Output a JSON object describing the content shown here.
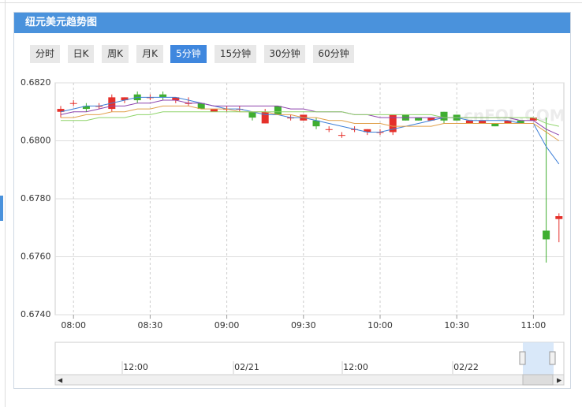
{
  "header": {
    "title": "纽元美元趋势图"
  },
  "tabs": {
    "labels": [
      "分时",
      "日K",
      "周K",
      "月K",
      "5分钟",
      "15分钟",
      "30分钟",
      "60分钟"
    ],
    "active": 4
  },
  "chart_data": {
    "type": "candlestick",
    "categories": [
      null,
      "08:00",
      null,
      null,
      null,
      null,
      null,
      "08:30",
      null,
      null,
      null,
      null,
      null,
      "09:00",
      null,
      null,
      null,
      null,
      null,
      "09:30",
      null,
      null,
      null,
      null,
      null,
      "10:00",
      null,
      null,
      null,
      null,
      null,
      "10:30",
      null,
      null,
      null,
      null,
      null,
      "11:00",
      null,
      null
    ],
    "open": [
      0.681,
      0.6813,
      0.6812,
      0.6812,
      0.6811,
      0.6814,
      0.6816,
      0.6815,
      0.6816,
      0.6814,
      0.6813,
      0.6813,
      0.681,
      0.6811,
      0.6811,
      0.681,
      0.6806,
      0.6812,
      0.6808,
      0.6807,
      0.6807,
      0.6804,
      0.6802,
      0.6804,
      0.6803,
      0.6803,
      0.6803,
      0.6809,
      0.6808,
      0.6807,
      0.681,
      0.6809,
      0.6806,
      0.6806,
      0.6806,
      0.6806,
      0.6807,
      0.6807,
      0.6769,
      0.6773
    ],
    "close": [
      0.6811,
      0.6813,
      0.6811,
      0.6812,
      0.6815,
      0.6815,
      0.6814,
      0.6815,
      0.6815,
      0.6815,
      0.6813,
      0.6811,
      0.6811,
      0.6811,
      0.6811,
      0.6808,
      0.681,
      0.6809,
      0.6808,
      0.6809,
      0.6805,
      0.6804,
      0.6802,
      0.6804,
      0.6804,
      0.6803,
      0.6809,
      0.6807,
      0.6807,
      0.6808,
      0.6807,
      0.6807,
      0.6807,
      0.6807,
      0.6805,
      0.6807,
      0.6806,
      0.6808,
      0.6766,
      0.6774
    ],
    "high": [
      0.6812,
      0.6814,
      0.6813,
      0.6813,
      0.6816,
      0.6815,
      0.6817,
      0.6816,
      0.6817,
      0.6815,
      0.6815,
      0.6813,
      0.6811,
      0.6812,
      0.6812,
      0.681,
      0.6811,
      0.6812,
      0.6809,
      0.6809,
      0.6808,
      0.6805,
      0.6803,
      0.6805,
      0.6804,
      0.6804,
      0.6809,
      0.6809,
      0.6808,
      0.6808,
      0.681,
      0.6809,
      0.6807,
      0.6807,
      0.6806,
      0.6807,
      0.6807,
      0.6808,
      0.6808,
      0.6775
    ],
    "low": [
      0.6808,
      0.6812,
      0.681,
      0.6811,
      0.681,
      0.6813,
      0.6813,
      0.6814,
      0.6814,
      0.6813,
      0.6812,
      0.6811,
      0.681,
      0.681,
      0.681,
      0.6807,
      0.6806,
      0.6809,
      0.6807,
      0.6807,
      0.6804,
      0.6803,
      0.6801,
      0.6803,
      0.6802,
      0.6802,
      0.6802,
      0.6807,
      0.6807,
      0.6807,
      0.6806,
      0.6807,
      0.6806,
      0.6806,
      0.6805,
      0.6806,
      0.6806,
      0.6807,
      0.6758,
      0.6765
    ],
    "up_color": "#e5302a",
    "down_color": "#3fae30",
    "overlays": [
      {
        "color": "#3d7fd8",
        "values": [
          0.681,
          0.6811,
          0.6812,
          0.6812,
          0.6813,
          0.6814,
          0.6815,
          0.6815,
          0.6815,
          0.6815,
          0.6814,
          0.6813,
          0.6812,
          0.6811,
          0.6811,
          0.681,
          0.6809,
          0.6809,
          0.6808,
          0.6808,
          0.6807,
          0.6806,
          0.6805,
          0.6804,
          0.6803,
          0.6803,
          0.6804,
          0.6805,
          0.6806,
          0.6807,
          0.6808,
          0.6808,
          0.6807,
          0.6807,
          0.6807,
          0.6807,
          0.6806,
          0.6806,
          0.6798,
          0.6792
        ]
      },
      {
        "color": "#8e44ad",
        "values": [
          0.6809,
          0.681,
          0.681,
          0.6811,
          0.6812,
          0.6812,
          0.6813,
          0.6813,
          0.6814,
          0.6814,
          0.6813,
          0.6813,
          0.6812,
          0.6812,
          0.6812,
          0.6812,
          0.6812,
          0.6812,
          0.6811,
          0.6811,
          0.681,
          0.681,
          0.681,
          0.6809,
          0.6809,
          0.6808,
          0.6808,
          0.6808,
          0.6808,
          0.6808,
          0.6808,
          0.6808,
          0.6808,
          0.6808,
          0.6808,
          0.6808,
          0.6807,
          0.6807,
          0.6804,
          0.6802
        ]
      },
      {
        "color": "#e0a04a",
        "values": [
          0.6808,
          0.6808,
          0.6809,
          0.6809,
          0.681,
          0.681,
          0.6811,
          0.6811,
          0.6812,
          0.6812,
          0.6812,
          0.6811,
          0.6811,
          0.6811,
          0.681,
          0.681,
          0.681,
          0.6809,
          0.6809,
          0.6808,
          0.6808,
          0.6807,
          0.6807,
          0.6806,
          0.6806,
          0.6806,
          0.6805,
          0.6805,
          0.6805,
          0.6805,
          0.6806,
          0.6806,
          0.6806,
          0.6806,
          0.6806,
          0.6806,
          0.6806,
          0.6806,
          0.6803,
          0.68
        ]
      },
      {
        "color": "#8fd46a",
        "values": [
          0.6807,
          0.6807,
          0.6807,
          0.6808,
          0.6808,
          0.6808,
          0.6809,
          0.6809,
          0.681,
          0.681,
          0.681,
          0.681,
          0.681,
          0.681,
          0.681,
          0.681,
          0.681,
          0.681,
          0.681,
          0.681,
          0.681,
          0.681,
          0.681,
          0.6809,
          0.6809,
          0.6809,
          0.6809,
          0.6809,
          0.6809,
          0.6809,
          0.6808,
          0.6808,
          0.6808,
          0.6808,
          0.6808,
          0.6808,
          0.6808,
          0.6808,
          0.6806,
          0.6805
        ]
      }
    ],
    "ylim": [
      0.674,
      0.682
    ],
    "yticks": [
      {
        "value": 0.674,
        "label": "0.6740"
      },
      {
        "value": 0.676,
        "label": "0.6760"
      },
      {
        "value": 0.678,
        "label": "0.6780"
      },
      {
        "value": 0.68,
        "label": "0.6800"
      },
      {
        "value": 0.682,
        "label": "0.6820"
      }
    ],
    "grid": true,
    "navigator_labels": [
      "12:00",
      "02/21",
      "12:00",
      "02/22"
    ]
  }
}
